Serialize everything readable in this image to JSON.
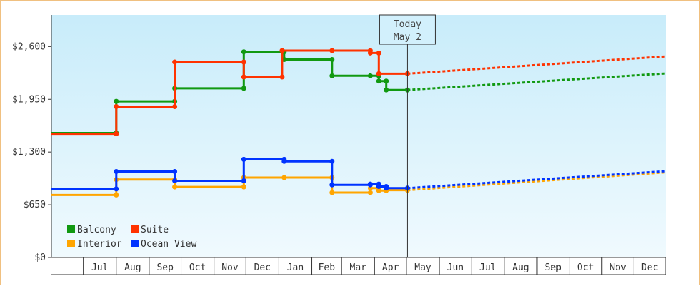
{
  "chart_data": {
    "type": "line",
    "title": "",
    "xlabel": "",
    "ylabel": "",
    "x_axis": {
      "type": "date",
      "start": "2012-06-01",
      "end": "2013-12-31",
      "labeled_months": [
        "2012-07",
        "2012-08",
        "2012-09",
        "2012-10",
        "2012-11",
        "2012-12",
        "2013-01",
        "2013-02",
        "2013-03",
        "2013-04",
        "2013-05",
        "2013-06",
        "2013-07",
        "2013-08",
        "2013-09",
        "2013-10",
        "2013-11",
        "2013-12"
      ],
      "tick_labels": [
        "Jul",
        "Aug",
        "Sep",
        "Oct",
        "Nov",
        "Dec",
        "Jan",
        "Feb",
        "Mar",
        "Apr",
        "May",
        "Jun",
        "Jul",
        "Aug",
        "Sep",
        "Oct",
        "Nov",
        "Dec"
      ]
    },
    "y_axis": {
      "ylim": [
        0,
        2990
      ],
      "ticks": [
        0,
        650,
        1300,
        1950,
        2600
      ],
      "tick_labels": [
        "$0",
        "$650",
        "$1,300",
        "$1,950",
        "$2,600"
      ]
    },
    "grid": false,
    "legend": {
      "placement": "bottom-left",
      "entries": [
        {
          "name": "Balcony",
          "color": "#119911"
        },
        {
          "name": "Suite",
          "color": "#ff3300"
        },
        {
          "name": "Interior",
          "color": "#ffa500"
        },
        {
          "name": "Ocean View",
          "color": "#0033ff"
        }
      ]
    },
    "today_marker": {
      "date": "2013-05-02",
      "line1": "Today",
      "line2": "May 2"
    },
    "series": [
      {
        "name": "Balcony",
        "color": "#119911",
        "points": [
          [
            "2012-06-01",
            1535
          ],
          [
            "2012-08-01",
            1535
          ],
          [
            "2012-08-01",
            1925
          ],
          [
            "2012-09-25",
            1925
          ],
          [
            "2012-09-25",
            2085
          ],
          [
            "2012-11-29",
            2085
          ],
          [
            "2012-11-29",
            2535
          ],
          [
            "2013-01-06",
            2535
          ],
          [
            "2013-01-06",
            2440
          ],
          [
            "2013-02-20",
            2440
          ],
          [
            "2013-02-20",
            2240
          ],
          [
            "2013-03-28",
            2240
          ],
          [
            "2013-04-05",
            2240
          ],
          [
            "2013-04-05",
            2175
          ],
          [
            "2013-04-12",
            2175
          ],
          [
            "2013-04-12",
            2065
          ],
          [
            "2013-05-02",
            2065
          ]
        ],
        "forecast": [
          [
            "2013-05-02",
            2065
          ],
          [
            "2014-01-01",
            2270
          ]
        ]
      },
      {
        "name": "Suite",
        "color": "#ff3300",
        "points": [
          [
            "2012-06-01",
            1525
          ],
          [
            "2012-08-01",
            1525
          ],
          [
            "2012-08-01",
            1860
          ],
          [
            "2012-09-25",
            1860
          ],
          [
            "2012-09-25",
            2410
          ],
          [
            "2012-11-29",
            2410
          ],
          [
            "2012-11-29",
            2225
          ],
          [
            "2013-01-04",
            2225
          ],
          [
            "2013-01-04",
            2550
          ],
          [
            "2013-02-20",
            2550
          ],
          [
            "2013-03-28",
            2550
          ],
          [
            "2013-03-28",
            2520
          ],
          [
            "2013-04-05",
            2520
          ],
          [
            "2013-04-05",
            2265
          ],
          [
            "2013-05-02",
            2265
          ]
        ],
        "forecast": [
          [
            "2013-05-02",
            2265
          ],
          [
            "2014-01-01",
            2480
          ]
        ]
      },
      {
        "name": "Interior",
        "color": "#ffa500",
        "points": [
          [
            "2012-06-01",
            770
          ],
          [
            "2012-08-01",
            770
          ],
          [
            "2012-08-01",
            960
          ],
          [
            "2012-09-25",
            960
          ],
          [
            "2012-09-25",
            870
          ],
          [
            "2012-11-29",
            870
          ],
          [
            "2012-11-29",
            985
          ],
          [
            "2013-01-06",
            985
          ],
          [
            "2013-02-20",
            985
          ],
          [
            "2013-02-20",
            800
          ],
          [
            "2013-03-28",
            800
          ],
          [
            "2013-03-28",
            855
          ],
          [
            "2013-04-05",
            855
          ],
          [
            "2013-04-05",
            825
          ],
          [
            "2013-04-12",
            825
          ],
          [
            "2013-04-12",
            830
          ],
          [
            "2013-05-02",
            830
          ]
        ],
        "forecast": [
          [
            "2013-05-02",
            830
          ],
          [
            "2014-01-01",
            1050
          ]
        ]
      },
      {
        "name": "Ocean View",
        "color": "#0033ff",
        "points": [
          [
            "2012-06-01",
            845
          ],
          [
            "2012-08-01",
            845
          ],
          [
            "2012-08-01",
            1060
          ],
          [
            "2012-09-25",
            1060
          ],
          [
            "2012-09-25",
            945
          ],
          [
            "2012-11-29",
            945
          ],
          [
            "2012-11-29",
            1210
          ],
          [
            "2013-01-06",
            1210
          ],
          [
            "2013-01-06",
            1185
          ],
          [
            "2013-02-20",
            1185
          ],
          [
            "2013-02-20",
            895
          ],
          [
            "2013-03-28",
            895
          ],
          [
            "2013-03-28",
            905
          ],
          [
            "2013-04-05",
            905
          ],
          [
            "2013-04-05",
            875
          ],
          [
            "2013-04-12",
            875
          ],
          [
            "2013-04-12",
            855
          ],
          [
            "2013-05-02",
            855
          ]
        ],
        "forecast": [
          [
            "2013-05-02",
            855
          ],
          [
            "2014-01-01",
            1065
          ]
        ]
      }
    ]
  }
}
